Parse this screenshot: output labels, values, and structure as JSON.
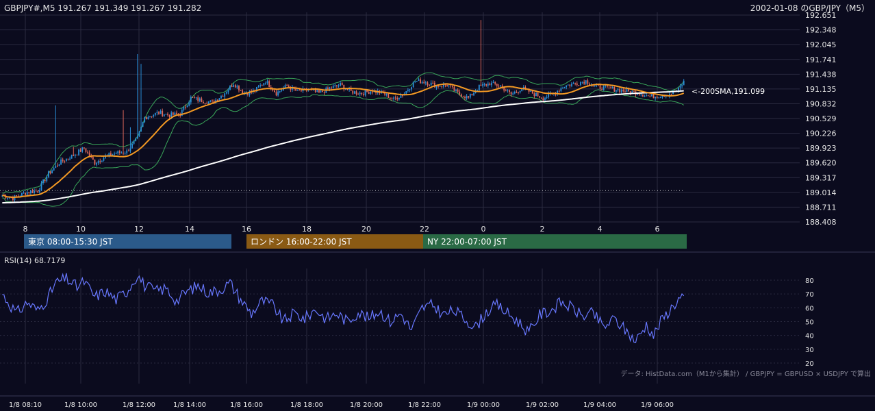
{
  "header": {
    "ohlc": "GBPJPY#,M5 191.267 191.349 191.267 191.282",
    "date_pair": "2002-01-08 のGBP/JPY（M5）"
  },
  "chart_data": [
    {
      "type": "candlestick",
      "title": "GBPJPY#,M5",
      "y_ticks": [
        "192.651",
        "192.348",
        "192.045",
        "191.741",
        "191.438",
        "191.135",
        "190.832",
        "190.529",
        "190.226",
        "189.923",
        "189.620",
        "189.317",
        "189.014",
        "188.711",
        "188.408"
      ],
      "x_ticks": [
        "8",
        "10",
        "12",
        "14",
        "16",
        "18",
        "20",
        "22",
        "0",
        "2",
        "4",
        "6"
      ],
      "ylim": [
        188.408,
        192.651
      ],
      "last_close": 191.282,
      "reference_line": 189.05,
      "sma200_label": "<-200SMA,191.099",
      "sma200_value": 191.099,
      "price_anchors": [
        [
          0,
          188.95
        ],
        [
          6,
          188.9
        ],
        [
          14,
          189.02
        ],
        [
          20,
          189.05
        ],
        [
          26,
          189.4
        ],
        [
          32,
          189.62
        ],
        [
          40,
          189.78
        ],
        [
          46,
          189.92
        ],
        [
          52,
          189.62
        ],
        [
          58,
          189.75
        ],
        [
          64,
          189.82
        ],
        [
          70,
          189.85
        ],
        [
          76,
          190.12
        ],
        [
          80,
          190.55
        ],
        [
          88,
          190.65
        ],
        [
          94,
          190.6
        ],
        [
          100,
          190.62
        ],
        [
          106,
          190.95
        ],
        [
          112,
          190.9
        ],
        [
          118,
          190.86
        ],
        [
          124,
          191.02
        ],
        [
          130,
          191.25
        ],
        [
          136,
          191.05
        ],
        [
          142,
          191.1
        ],
        [
          148,
          191.3
        ],
        [
          154,
          191.05
        ],
        [
          160,
          191.2
        ],
        [
          166,
          191.08
        ],
        [
          172,
          191.12
        ],
        [
          178,
          191.05
        ],
        [
          184,
          191.15
        ],
        [
          190,
          191.22
        ],
        [
          196,
          191.08
        ],
        [
          202,
          191.05
        ],
        [
          208,
          191.1
        ],
        [
          214,
          191.05
        ],
        [
          220,
          190.92
        ],
        [
          226,
          191.05
        ],
        [
          232,
          191.3
        ],
        [
          238,
          191.28
        ],
        [
          244,
          191.2
        ],
        [
          250,
          191.22
        ],
        [
          256,
          191.05
        ],
        [
          262,
          190.95
        ],
        [
          268,
          191.18
        ],
        [
          274,
          191.25
        ],
        [
          280,
          191.2
        ],
        [
          286,
          191.02
        ],
        [
          292,
          191.15
        ],
        [
          298,
          191.05
        ],
        [
          304,
          190.95
        ],
        [
          310,
          191.05
        ],
        [
          316,
          191.2
        ],
        [
          322,
          191.25
        ],
        [
          328,
          191.3
        ],
        [
          334,
          191.18
        ],
        [
          340,
          191.15
        ],
        [
          346,
          191.12
        ],
        [
          352,
          191.08
        ],
        [
          358,
          191.05
        ],
        [
          364,
          190.98
        ],
        [
          370,
          191.0
        ],
        [
          376,
          191.05
        ],
        [
          380,
          191.12
        ],
        [
          383,
          191.28
        ]
      ],
      "spikes": [
        {
          "bar": 30,
          "high": 190.8
        },
        {
          "bar": 40,
          "high": 189.95
        },
        {
          "bar": 68,
          "high": 190.7
        },
        {
          "bar": 76,
          "high": 191.85
        },
        {
          "bar": 78,
          "high": 191.65
        },
        {
          "bar": 72,
          "high": 190.35
        },
        {
          "bar": 269,
          "high": 192.55
        }
      ],
      "series": [
        {
          "name": "SMA200",
          "color": "#ffffff"
        },
        {
          "name": "SMA20",
          "color": "#f59a23"
        },
        {
          "name": "Bollinger upper",
          "color": "#3aa85a"
        },
        {
          "name": "Bollinger lower",
          "color": "#3aa85a"
        }
      ],
      "colors": {
        "up": "#2a8fd8",
        "down": "#e26a5a",
        "bg": "#0b0b1e",
        "grid": "#2b2b40"
      }
    },
    {
      "type": "line",
      "title": "RSI(14) 68.7179",
      "y_ticks": [
        "80",
        "70",
        "60",
        "50",
        "40",
        "30",
        "20"
      ],
      "ylim": [
        18,
        88
      ],
      "last_value": 68.7179,
      "anchors": [
        [
          0,
          70
        ],
        [
          8,
          56
        ],
        [
          14,
          64
        ],
        [
          20,
          58
        ],
        [
          26,
          68
        ],
        [
          30,
          78
        ],
        [
          36,
          81
        ],
        [
          42,
          75
        ],
        [
          46,
          79
        ],
        [
          52,
          68
        ],
        [
          58,
          72
        ],
        [
          64,
          66
        ],
        [
          70,
          72
        ],
        [
          76,
          84
        ],
        [
          80,
          76
        ],
        [
          86,
          72
        ],
        [
          92,
          74
        ],
        [
          98,
          65
        ],
        [
          104,
          72
        ],
        [
          110,
          76
        ],
        [
          116,
          71
        ],
        [
          122,
          73
        ],
        [
          128,
          78
        ],
        [
          134,
          66
        ],
        [
          140,
          56
        ],
        [
          146,
          65
        ],
        [
          152,
          62
        ],
        [
          158,
          50
        ],
        [
          164,
          56
        ],
        [
          170,
          52
        ],
        [
          176,
          59
        ],
        [
          182,
          52
        ],
        [
          188,
          56
        ],
        [
          194,
          50
        ],
        [
          200,
          57
        ],
        [
          206,
          52
        ],
        [
          212,
          58
        ],
        [
          218,
          50
        ],
        [
          224,
          56
        ],
        [
          230,
          44
        ],
        [
          236,
          60
        ],
        [
          242,
          62
        ],
        [
          248,
          55
        ],
        [
          254,
          58
        ],
        [
          260,
          52
        ],
        [
          266,
          46
        ],
        [
          272,
          57
        ],
        [
          278,
          62
        ],
        [
          284,
          56
        ],
        [
          290,
          50
        ],
        [
          296,
          42
        ],
        [
          302,
          55
        ],
        [
          308,
          58
        ],
        [
          314,
          64
        ],
        [
          320,
          60
        ],
        [
          326,
          54
        ],
        [
          332,
          56
        ],
        [
          338,
          46
        ],
        [
          344,
          52
        ],
        [
          350,
          44
        ],
        [
          356,
          36
        ],
        [
          362,
          48
        ],
        [
          366,
          40
        ],
        [
          370,
          50
        ],
        [
          376,
          60
        ],
        [
          380,
          66
        ],
        [
          383,
          69
        ]
      ],
      "color": "#6878ff"
    }
  ],
  "sessions": [
    {
      "label": "東京 08:00-15:30 JST",
      "color": "#2b5a8a"
    },
    {
      "label": "ロンドン 16:00-22:00 JST",
      "color": "#8a5a14"
    },
    {
      "label": "NY 22:00-07:00 JST",
      "color": "#2a6a45"
    }
  ],
  "rsi": {
    "label": "RSI(14) 68.7179"
  },
  "footer": {
    "credit": "データ: HistData.com（M1から集計） / GBPJPY = GBPUSD × USDJPY で算出",
    "time_ticks": [
      "1/8 08:10",
      "1/8 10:00",
      "1/8 12:00",
      "1/8 14:00",
      "1/8 16:00",
      "1/8 18:00",
      "1/8 20:00",
      "1/8 22:00",
      "1/9 00:00",
      "1/9 02:00",
      "1/9 04:00",
      "1/9 06:00"
    ]
  }
}
